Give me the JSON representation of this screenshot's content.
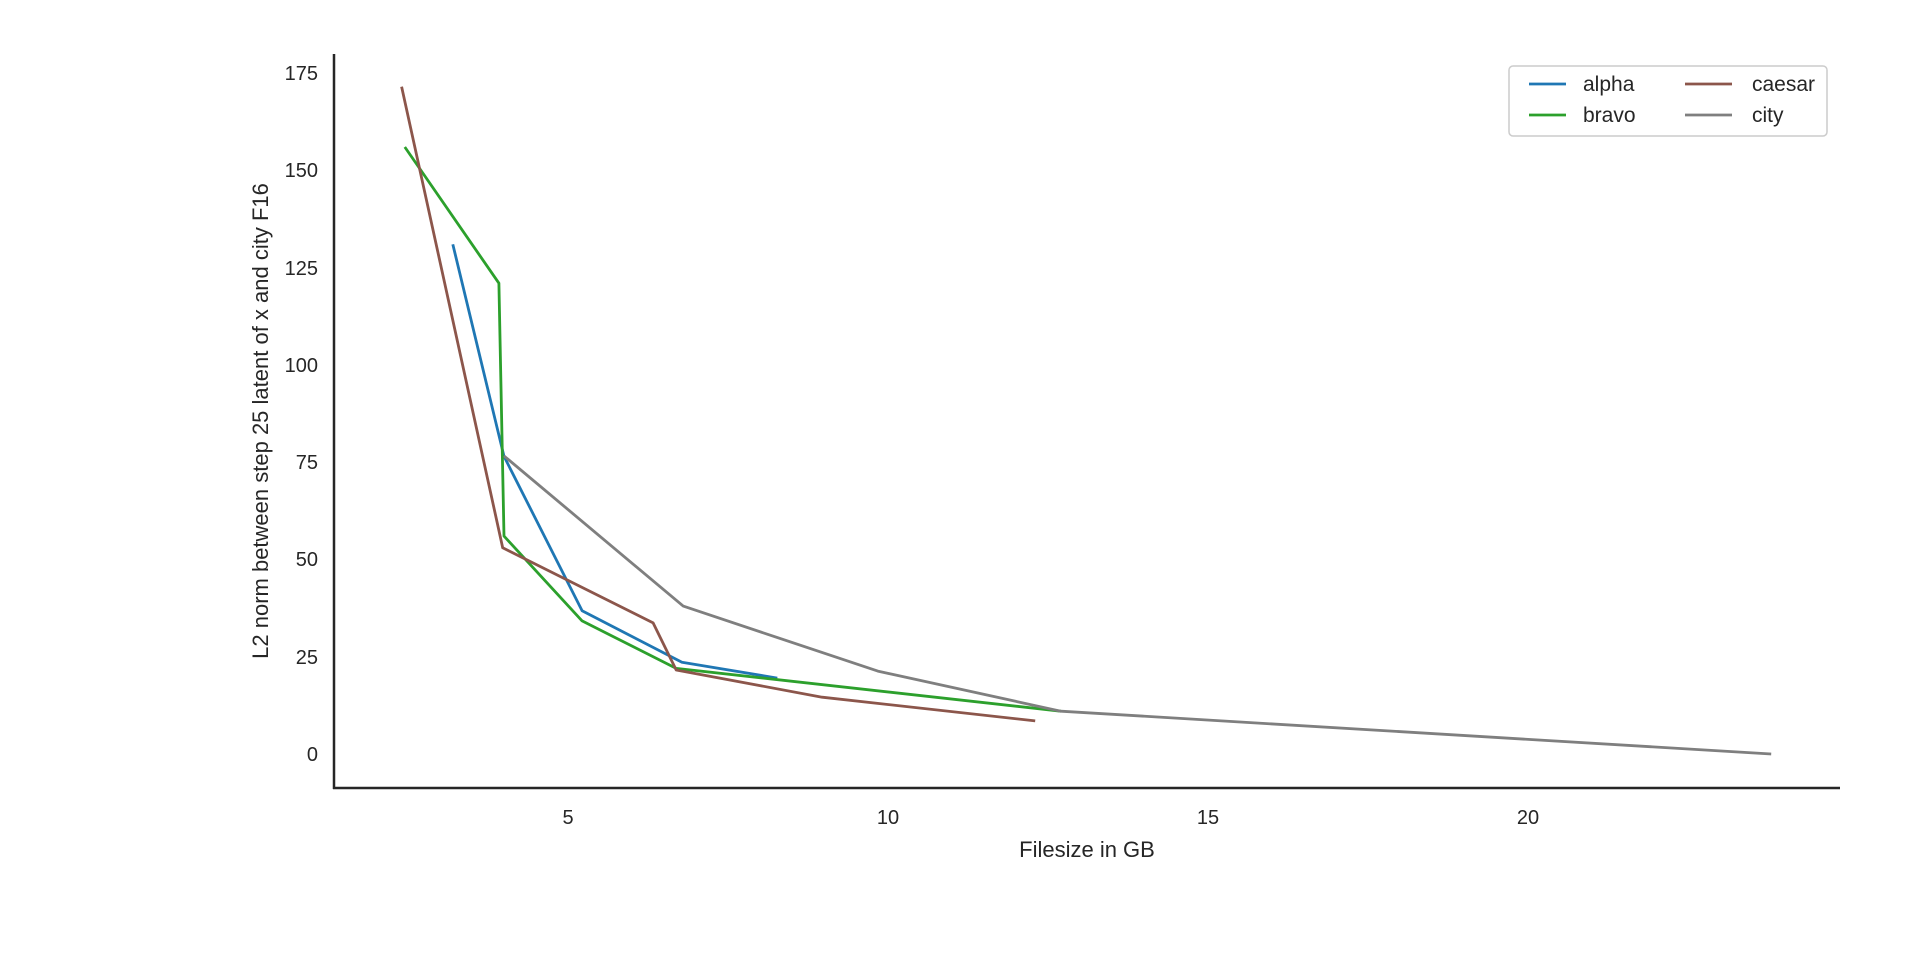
{
  "chart_data": {
    "type": "line",
    "title": "",
    "xlabel": "Filesize in GB",
    "ylabel": "L2 norm between step 25 latent of x and city F16",
    "xlim": [
      1.35,
      24.9
    ],
    "ylim": [
      -8.5,
      179
    ],
    "xticks": [
      5,
      10,
      15,
      20
    ],
    "yticks": [
      0,
      25,
      50,
      75,
      100,
      125,
      150,
      175
    ],
    "grid": false,
    "legend_position": "upper right",
    "legend_columns": 2,
    "series": [
      {
        "name": "alpha",
        "color": "#1f77b4",
        "x": [
          3.2,
          4.0,
          5.22,
          6.78,
          8.27
        ],
        "y": [
          131,
          76.5,
          36.8,
          23.6,
          19.5
        ]
      },
      {
        "name": "bravo",
        "color": "#2ca02c",
        "x": [
          2.45,
          3.92,
          4.0,
          5.22,
          6.69,
          12.7
        ],
        "y": [
          156,
          121,
          56,
          34.2,
          22,
          11
        ]
      },
      {
        "name": "caesar",
        "color": "#8c564b",
        "x": [
          2.4,
          3.98,
          6.33,
          6.69,
          8.97,
          12.3
        ],
        "y": [
          171.5,
          53,
          33.7,
          21.6,
          14.6,
          8.5
        ]
      },
      {
        "name": "city",
        "color": "#7f7f7f",
        "x": [
          4.0,
          6.8,
          9.84,
          12.7,
          23.8
        ],
        "y": [
          76.6,
          38,
          21.3,
          11,
          0
        ]
      }
    ]
  },
  "axes": {
    "xlabel": "Filesize in GB",
    "ylabel": "L2 norm between step 25 latent of x and city F16",
    "xtick_labels": [
      "5",
      "10",
      "15",
      "20"
    ],
    "ytick_labels": [
      "0",
      "25",
      "50",
      "75",
      "100",
      "125",
      "150",
      "175"
    ]
  },
  "legend": {
    "items": [
      {
        "label": "alpha",
        "color": "#1f77b4"
      },
      {
        "label": "bravo",
        "color": "#2ca02c"
      },
      {
        "label": "caesar",
        "color": "#8c564b"
      },
      {
        "label": "city",
        "color": "#7f7f7f"
      }
    ]
  }
}
